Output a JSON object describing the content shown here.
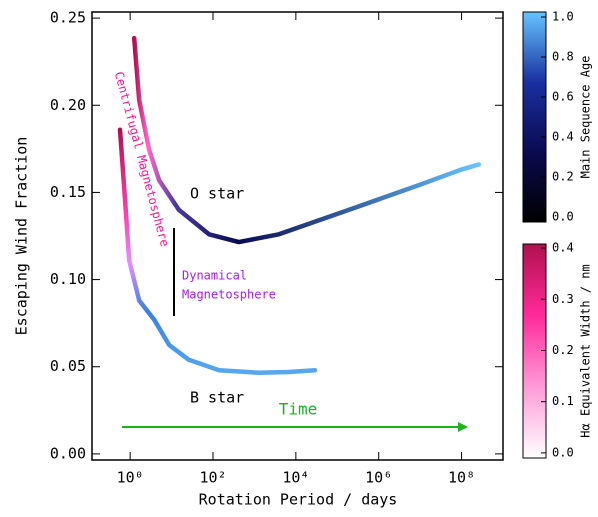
{
  "chart_data": {
    "type": "line",
    "x_label": "Rotation Period / days",
    "y_label": "Escaping Wind Fraction",
    "xscale": "log",
    "xlim": [
      0.12,
      1000000000
    ],
    "ylim": [
      -0.0035,
      0.2535
    ],
    "xticks": [
      {
        "value": 1,
        "label": "10⁰"
      },
      {
        "value": 100,
        "label": "10²"
      },
      {
        "value": 10000,
        "label": "10⁴"
      },
      {
        "value": 1000000,
        "label": "10⁶"
      },
      {
        "value": 100000000,
        "label": "10⁸"
      }
    ],
    "yticks": [
      {
        "value": 0,
        "label": "0.00"
      },
      0.05,
      {
        "value": 0.1,
        "label": "0.10"
      },
      0.15,
      {
        "value": 0.2,
        "label": "0.20"
      },
      0.25
    ],
    "series": [
      {
        "x": [
          1.25,
          1.65,
          2.9,
          5,
          15,
          80,
          420,
          3900,
          190000,
          9000000,
          95000000,
          260000000
        ],
        "values": [
          0.2385,
          0.203,
          0.174,
          0.157,
          0.14,
          0.126,
          0.1215,
          0.126,
          0.14,
          0.154,
          0.163,
          0.166
        ]
      },
      {
        "x": [
          0.57,
          0.75,
          0.95,
          1.65,
          3.8,
          8.7,
          26,
          140,
          1300,
          6800,
          29000
        ],
        "values": [
          0.186,
          0.146,
          0.111,
          0.088,
          0.077,
          0.0625,
          0.054,
          0.048,
          0.0465,
          0.047,
          0.048
        ]
      }
    ],
    "annotations": [
      "O star",
      "B star",
      "Time",
      "Centrifugal Magnetosphere",
      "Dynamical",
      "Magnetosphere"
    ],
    "colorbars": [
      {
        "label": "Main Sequence Age",
        "lim": [
          -0.025,
          1.025
        ],
        "ticks": [
          {
            "value": 0,
            "label": "0.0"
          },
          0.2,
          0.4,
          0.6,
          0.8,
          {
            "value": 1,
            "label": "1.0"
          }
        ],
        "colors": [
          "#000000",
          "#0a0a50",
          "#1a30a0",
          "#66c4ff"
        ]
      },
      {
        "label": "Hα Equivalent Width / nm",
        "lim": [
          -0.01,
          0.408
        ],
        "ticks": [
          {
            "value": 0,
            "label": "0.0"
          },
          0.1,
          0.2,
          0.3,
          0.4
        ],
        "colors": [
          "#ffffff",
          "#ff9ad8",
          "#ff2a9a",
          "#b0104e"
        ]
      }
    ]
  }
}
